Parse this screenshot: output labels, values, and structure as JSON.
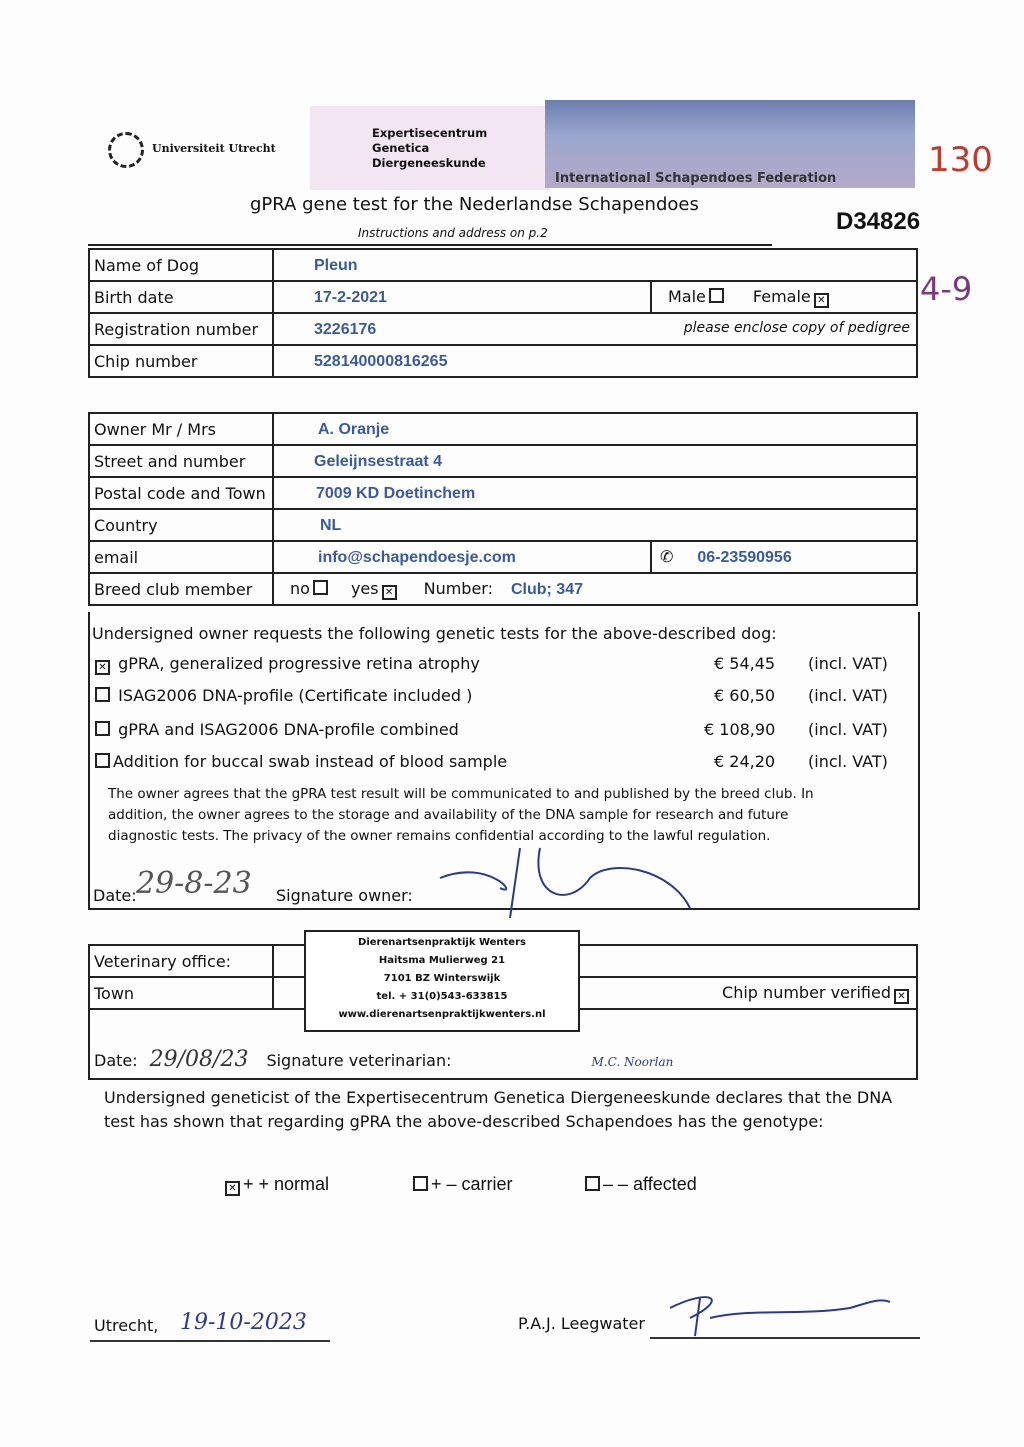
{
  "header": {
    "university": "Universiteit Utrecht",
    "center_lines": [
      "Expertisecentrum",
      "Genetica",
      "Diergeneeskunde"
    ],
    "banner": "International Schapendoes Federation",
    "title": "gPRA gene test for the Nederlandse Schapendoes",
    "subtitle": "Instructions and address on p.2",
    "code": "D34826",
    "handwritten_number": "130",
    "handwritten_age": "4-9"
  },
  "dog": {
    "name_label": "Name of Dog",
    "name": "Pleun",
    "birth_label": "Birth date",
    "birth": "17-2-2021",
    "male": "Male",
    "female": "Female",
    "reg_label": "Registration number",
    "reg": "3226176",
    "pedigree_note": "please enclose copy of pedigree",
    "chip_label": "Chip number",
    "chip": "528140000816265"
  },
  "owner": {
    "owner_label": "Owner Mr / Mrs",
    "owner": "A. Oranje",
    "street_label": "Street and number",
    "street": "Geleijnsestraat 4",
    "postal_label": "Postal code and Town",
    "postal": "7009 KD Doetinchem",
    "country_label": "Country",
    "country": "NL",
    "email_label": "email",
    "email": "info@schapendoesje.com",
    "phone_icon": "phone-icon",
    "phone": "06-23590956",
    "club_label": "Breed club member",
    "no": "no",
    "yes": "yes",
    "number_label": "Number:",
    "number": "Club; 347"
  },
  "tests": {
    "intro": "Undersigned owner requests the following genetic tests for the above-described dog:",
    "items": [
      {
        "label": "gPRA, generalized progressive retina atrophy",
        "price": "€ 54,45",
        "vat": "(incl. VAT)",
        "checked": true
      },
      {
        "label": "ISAG2006 DNA-profile (Certificate included )",
        "price": "€ 60,50",
        "vat": "(incl. VAT)",
        "checked": false
      },
      {
        "label": "gPRA and ISAG2006 DNA-profile combined",
        "price": "€ 108,90",
        "vat": "(incl. VAT)",
        "checked": false
      },
      {
        "label": "Addition for buccal swab instead of blood sample",
        "price": "€ 24,20",
        "vat": "(incl. VAT)",
        "checked": false
      }
    ],
    "consent": "The owner agrees that the gPRA test result will be communicated to and published by the breed club. In addition, the owner agrees to the storage and availability of the DNA sample for research and future diagnostic tests. The privacy of the owner remains confidential according to the lawful regulation.",
    "date_label": "Date:",
    "date": "29-8-23",
    "sig_label": "Signature owner:"
  },
  "vet": {
    "office_label": "Veterinary office:",
    "town_label": "Town",
    "chip_verified": "Chip number verified",
    "stamp": [
      "Dierenartsenpraktijk Wenters",
      "Haitsma Mulierweg 21",
      "7101 BZ Winterswijk",
      "tel. + 31(0)543-633815",
      "www.dierenartsenpraktijkwenters.nl"
    ],
    "date_label": "Date:",
    "date": "29/08/23",
    "sig_label": "Signature veterinarian:",
    "sig_name": "M.C. Noorlan"
  },
  "result": {
    "declaration": "Undersigned geneticist of the Expertisecentrum Genetica Diergeneeskunde declares that the DNA test has shown that regarding gPRA the above-described Schapendoes has the genotype:",
    "options": [
      {
        "label": "+ + normal",
        "checked": true
      },
      {
        "label": "+ – carrier",
        "checked": false
      },
      {
        "label": "– – affected",
        "checked": false
      }
    ],
    "place": "Utrecht,",
    "date": "19-10-2023",
    "signer": "P.A.J. Leegwater"
  }
}
